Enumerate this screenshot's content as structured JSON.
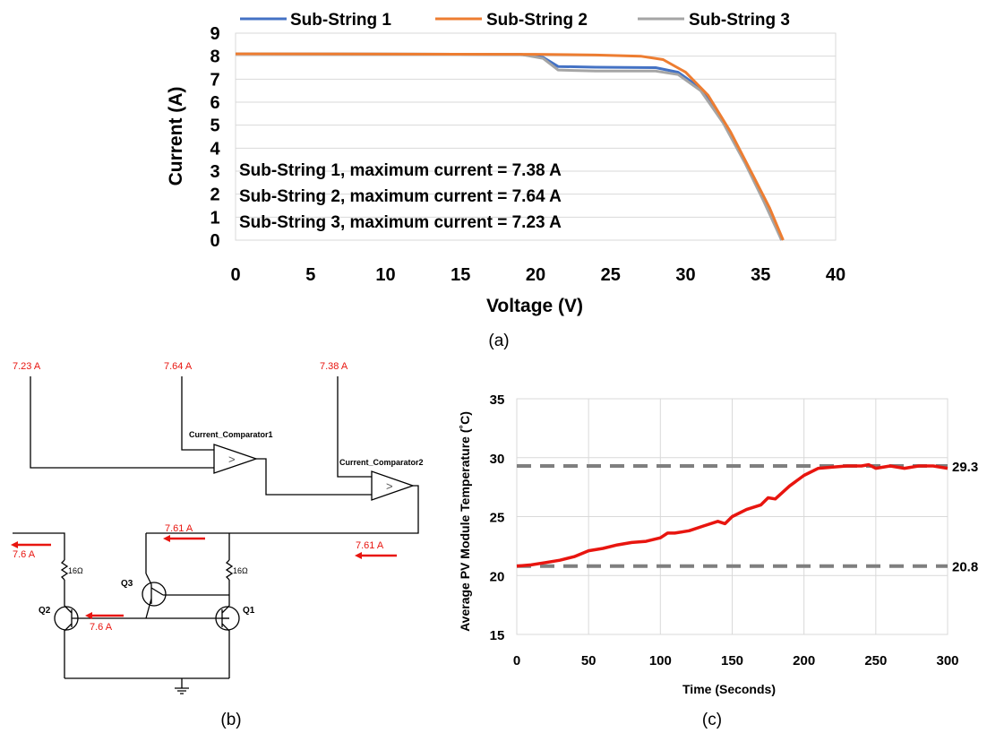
{
  "colors": {
    "series1": "#4472C4",
    "series2": "#ED7D31",
    "series3": "#A5A5A5",
    "red": "#E8150F",
    "dashed": "#7F7F7F",
    "grid": "#D9D9D9"
  },
  "captions": {
    "a": "(a)",
    "b": "(b)",
    "c": "(c)"
  },
  "chart_data": [
    {
      "type": "line",
      "id": "a",
      "xlabel": "Voltage (V)",
      "ylabel": "Current (A)",
      "xlim": [
        0,
        40
      ],
      "ylim": [
        0,
        9
      ],
      "xticks": [
        "0",
        "5",
        "10",
        "15",
        "20",
        "25",
        "30",
        "35",
        "40"
      ],
      "yticks": [
        "0",
        "1",
        "2",
        "3",
        "4",
        "5",
        "6",
        "7",
        "8",
        "9"
      ],
      "grid": "horizontal",
      "legend_position": "top",
      "series": [
        {
          "name": "Sub-String 1",
          "color_key": "series1",
          "points": [
            [
              0,
              8.1
            ],
            [
              19,
              8.08
            ],
            [
              20.5,
              7.95
            ],
            [
              21.5,
              7.55
            ],
            [
              24,
              7.52
            ],
            [
              28,
              7.5
            ],
            [
              29.5,
              7.3
            ],
            [
              31,
              6.6
            ],
            [
              32.5,
              5.2
            ],
            [
              34,
              3.4
            ],
            [
              35.2,
              1.8
            ],
            [
              36.4,
              0
            ]
          ]
        },
        {
          "name": "Sub-String 2",
          "color_key": "series2",
          "points": [
            [
              0,
              8.1
            ],
            [
              20,
              8.08
            ],
            [
              24,
              8.05
            ],
            [
              27,
              8.0
            ],
            [
              28.5,
              7.85
            ],
            [
              30,
              7.3
            ],
            [
              31.5,
              6.3
            ],
            [
              33,
              4.7
            ],
            [
              34.5,
              2.8
            ],
            [
              35.6,
              1.4
            ],
            [
              36.5,
              0
            ]
          ]
        },
        {
          "name": "Sub-String 3",
          "color_key": "series3",
          "points": [
            [
              0,
              8.1
            ],
            [
              19,
              8.08
            ],
            [
              20.5,
              7.9
            ],
            [
              21.5,
              7.4
            ],
            [
              24,
              7.35
            ],
            [
              28,
              7.35
            ],
            [
              29.5,
              7.2
            ],
            [
              31,
              6.5
            ],
            [
              32.5,
              5.1
            ],
            [
              34,
              3.3
            ],
            [
              35.2,
              1.7
            ],
            [
              36.4,
              0
            ]
          ]
        }
      ],
      "annotations": [
        "Sub-String 1, maximum current = 7.38 A",
        "Sub-String 2, maximum current = 7.64 A",
        "Sub-String 3, maximum current = 7.23 A"
      ]
    },
    {
      "type": "line",
      "id": "c",
      "xlabel": "Time (Seconds)",
      "ylabel": "Average PV Module Temperature (˚C)",
      "xlim": [
        0,
        300
      ],
      "ylim": [
        15,
        35
      ],
      "xticks": [
        "0",
        "50",
        "100",
        "150",
        "200",
        "250",
        "300"
      ],
      "yticks": [
        "15",
        "20",
        "25",
        "30",
        "35"
      ],
      "grid": "both",
      "series": [
        {
          "color_key": "red",
          "points": [
            [
              0,
              20.8
            ],
            [
              10,
              20.9
            ],
            [
              20,
              21.1
            ],
            [
              30,
              21.3
            ],
            [
              40,
              21.6
            ],
            [
              50,
              22.1
            ],
            [
              60,
              22.3
            ],
            [
              70,
              22.6
            ],
            [
              80,
              22.8
            ],
            [
              90,
              22.9
            ],
            [
              100,
              23.2
            ],
            [
              105,
              23.6
            ],
            [
              110,
              23.6
            ],
            [
              120,
              23.8
            ],
            [
              130,
              24.2
            ],
            [
              140,
              24.6
            ],
            [
              145,
              24.4
            ],
            [
              150,
              25.0
            ],
            [
              160,
              25.6
            ],
            [
              170,
              26.0
            ],
            [
              175,
              26.6
            ],
            [
              180,
              26.5
            ],
            [
              190,
              27.6
            ],
            [
              200,
              28.5
            ],
            [
              210,
              29.1
            ],
            [
              220,
              29.2
            ],
            [
              230,
              29.3
            ],
            [
              240,
              29.3
            ],
            [
              245,
              29.4
            ],
            [
              250,
              29.1
            ],
            [
              260,
              29.3
            ],
            [
              270,
              29.1
            ],
            [
              280,
              29.3
            ],
            [
              290,
              29.3
            ],
            [
              300,
              29.1
            ]
          ]
        }
      ],
      "reference_lines": [
        {
          "value": 29.3,
          "label": "29.3"
        },
        {
          "value": 20.8,
          "label": "20.8"
        }
      ]
    }
  ],
  "circuit": {
    "inputs": [
      "7.23 A",
      "7.64 A",
      "7.38 A"
    ],
    "comparators": [
      "Current_Comparator1",
      "Current_Comparator2"
    ],
    "transistors": [
      "Q1",
      "Q2",
      "Q3"
    ],
    "resistors": [
      "16Ω",
      "16Ω"
    ],
    "currents": {
      "top_branch": "7.61 A",
      "comparator_out": "7.61 A",
      "output_left": "7.6 A",
      "mirror": "7.6 A"
    },
    "comparator_symbol": ">"
  }
}
